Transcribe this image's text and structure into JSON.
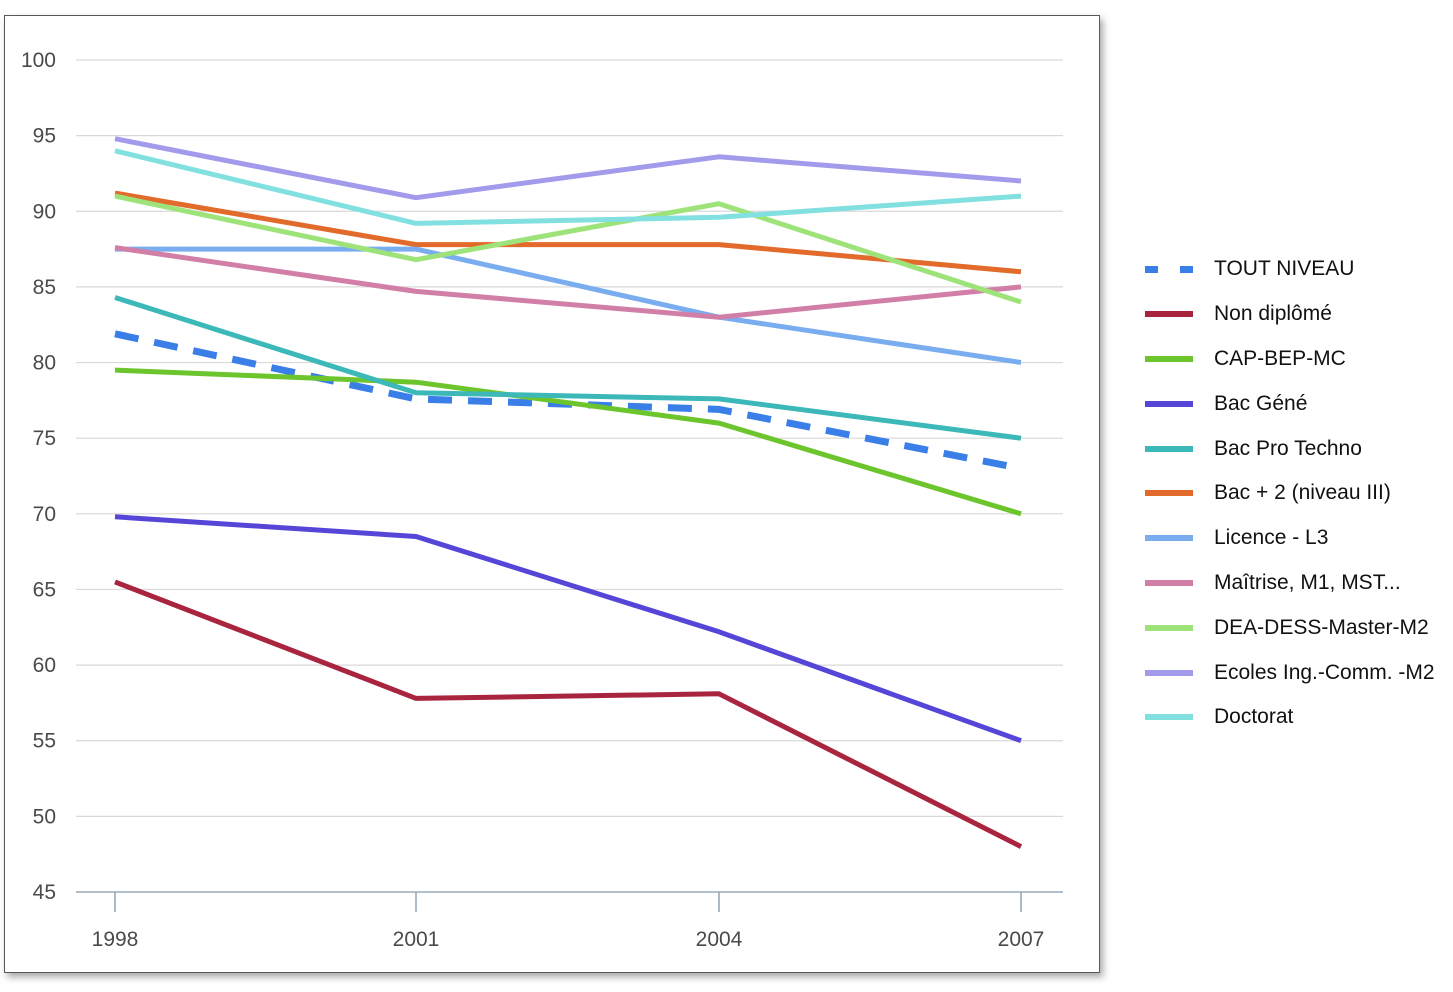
{
  "chart_data": {
    "type": "line",
    "title": "",
    "xlabel": "",
    "ylabel": "",
    "categories": [
      "1998",
      "2001",
      "2004",
      "2007"
    ],
    "ylim": [
      45,
      100
    ],
    "yticks": [
      45,
      50,
      55,
      60,
      65,
      70,
      75,
      80,
      85,
      90,
      95,
      100
    ],
    "grid": true,
    "legend_position": "right",
    "series": [
      {
        "name": "TOUT NIVEAU",
        "values": [
          81.9,
          77.6,
          76.9,
          73.0
        ],
        "color": "#3a7ee8",
        "dashed": true
      },
      {
        "name": "Non diplômé",
        "values": [
          65.5,
          57.8,
          58.1,
          48.0
        ],
        "color": "#a8243f"
      },
      {
        "name": "CAP-BEP-MC",
        "values": [
          79.5,
          78.7,
          76.0,
          70.0
        ],
        "color": "#6cc52c"
      },
      {
        "name": "Bac Géné",
        "values": [
          69.8,
          68.5,
          62.2,
          55.0
        ],
        "color": "#5546d8"
      },
      {
        "name": "Bac Pro Techno",
        "values": [
          84.3,
          78.0,
          77.6,
          75.0
        ],
        "color": "#3cb8b8"
      },
      {
        "name": "Bac + 2 (niveau III)",
        "values": [
          91.2,
          87.8,
          87.8,
          86.0
        ],
        "color": "#e26a2a"
      },
      {
        "name": "Licence - L3",
        "values": [
          87.5,
          87.5,
          83.0,
          80.0
        ],
        "color": "#79adf0"
      },
      {
        "name": "Maîtrise, M1, MST...",
        "values": [
          87.6,
          84.7,
          83.0,
          85.0
        ],
        "color": "#d27fa8"
      },
      {
        "name": "DEA-DESS-Master-M2",
        "values": [
          91.0,
          86.8,
          90.5,
          84.0
        ],
        "color": "#9ee37a"
      },
      {
        "name": "Ecoles Ing.-Comm. -M2",
        "values": [
          94.8,
          90.9,
          93.6,
          92.0
        ],
        "color": "#a29aea"
      },
      {
        "name": "Doctorat",
        "values": [
          94.0,
          89.2,
          89.6,
          91.0
        ],
        "color": "#82e0e0"
      }
    ]
  }
}
